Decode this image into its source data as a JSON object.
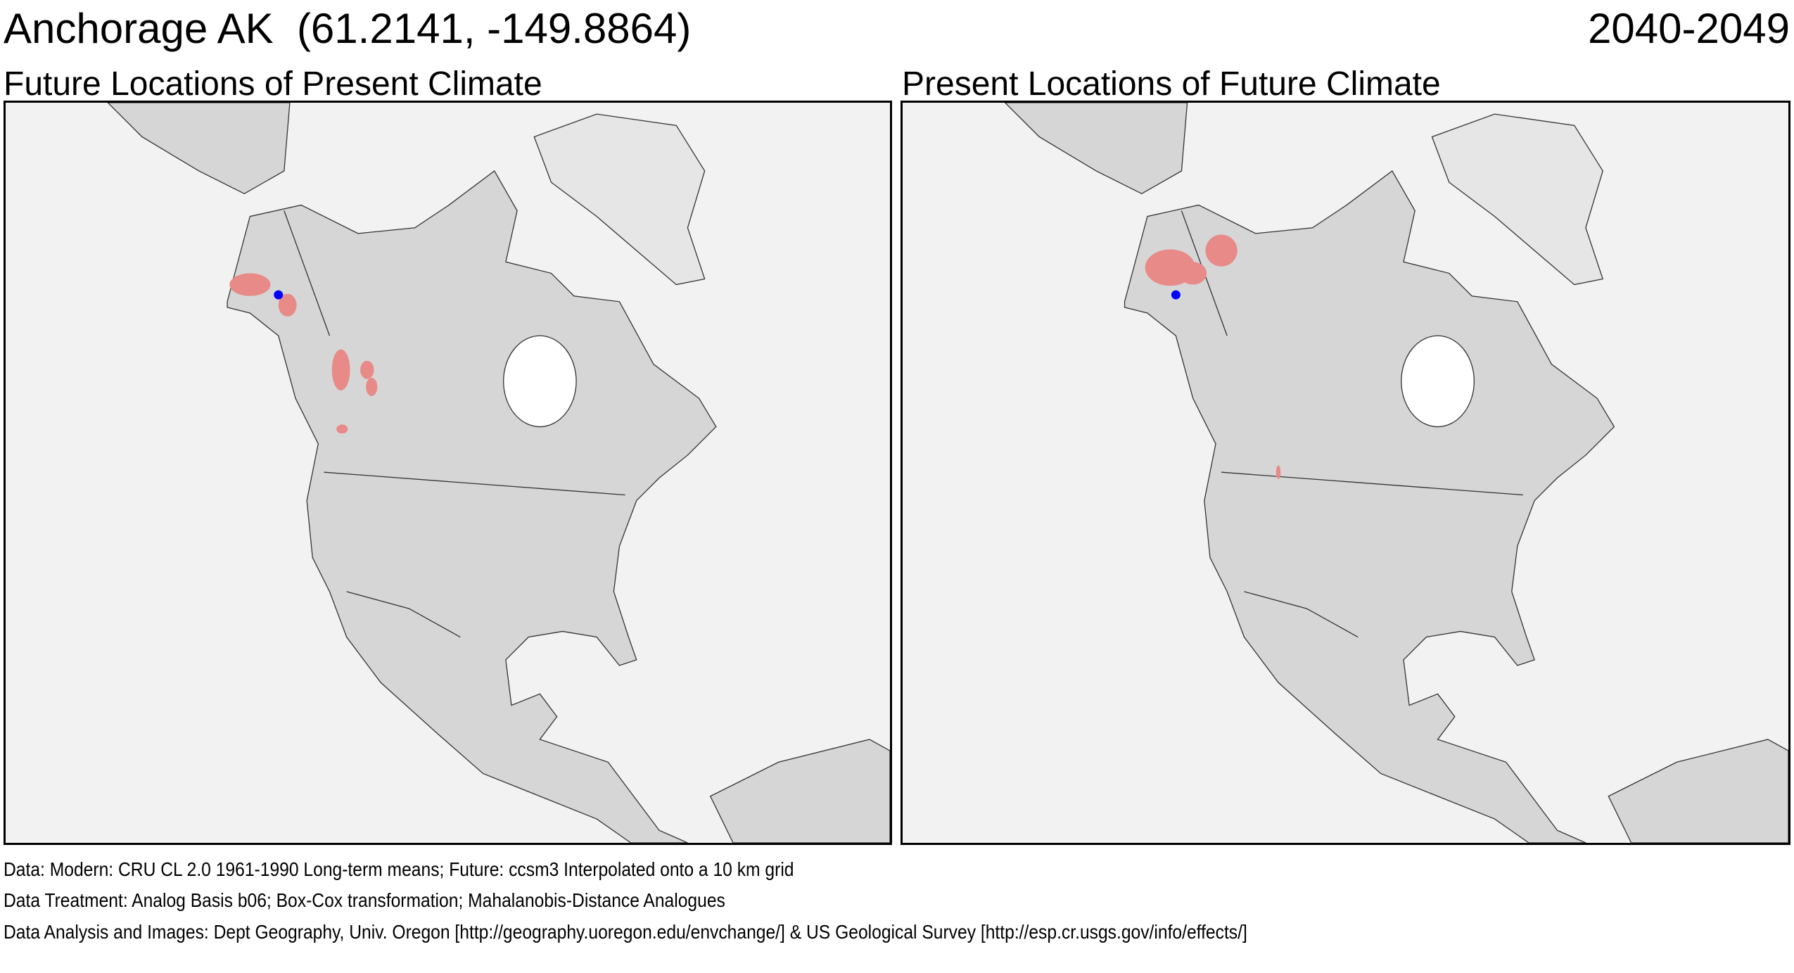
{
  "header": {
    "location": "Anchorage AK  (61.2141, -149.8864)",
    "period": "2040-2049"
  },
  "panels": [
    {
      "title": "Future Locations of Present Climate",
      "analog_color": "#e88a88",
      "site_color": "#0000ff"
    },
    {
      "title": "Present Locations of Future Climate",
      "analog_color": "#e88a88",
      "site_color": "#0000ff"
    }
  ],
  "colors": {
    "land": "#d6d6d6",
    "ocean": "#f2f2f2",
    "hudson_bay": "#ffffff"
  },
  "footer": {
    "data": "Data:  Modern: CRU CL 2.0 1961-1990 Long-term means; Future: ccsm3 Interpolated onto a 10 km grid",
    "treatment": "Data Treatment:  Analog Basis b06; Box-Cox transformation; Mahalanobis-Distance Analogues",
    "analysis": "Data Analysis and Images:  Dept Geography, Univ. Oregon [http://geography.uoregon.edu/envchange/] & US Geological Survey [http://esp.cr.usgs.gov/info/effects/]"
  }
}
